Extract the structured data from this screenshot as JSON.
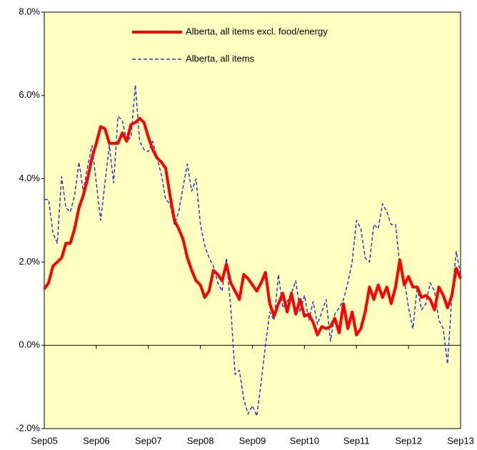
{
  "chart_data": {
    "type": "line",
    "categories": [
      "Sep05",
      null,
      null,
      null,
      null,
      null,
      null,
      null,
      null,
      null,
      null,
      null,
      "Sep06",
      null,
      null,
      null,
      null,
      null,
      null,
      null,
      null,
      null,
      null,
      null,
      "Sep07",
      null,
      null,
      null,
      null,
      null,
      null,
      null,
      null,
      null,
      null,
      null,
      "Sep08",
      null,
      null,
      null,
      null,
      null,
      null,
      null,
      null,
      null,
      null,
      null,
      "Sep09",
      null,
      null,
      null,
      null,
      null,
      null,
      null,
      null,
      null,
      null,
      null,
      "Sept10",
      null,
      null,
      null,
      null,
      null,
      null,
      null,
      null,
      null,
      null,
      null,
      "Sep11",
      null,
      null,
      null,
      null,
      null,
      null,
      null,
      null,
      null,
      null,
      null,
      "Sep12",
      null,
      null,
      null,
      null,
      null,
      null,
      null,
      null,
      null,
      null,
      null,
      "Sep13"
    ],
    "series": [
      {
        "name": "Alberta, all items excl. food/energy",
        "color": "#ff0000",
        "values": [
          1.35,
          1.5,
          1.9,
          2.0,
          2.1,
          2.45,
          2.45,
          2.8,
          3.3,
          3.6,
          4.0,
          4.5,
          4.85,
          5.25,
          5.2,
          4.85,
          4.85,
          4.85,
          5.1,
          4.9,
          5.3,
          5.35,
          5.45,
          5.35,
          5.0,
          4.7,
          4.5,
          4.4,
          4.25,
          3.6,
          3.0,
          2.8,
          2.55,
          2.1,
          1.8,
          1.55,
          1.45,
          1.15,
          1.3,
          1.8,
          1.7,
          1.55,
          1.95,
          1.5,
          1.3,
          1.1,
          1.7,
          1.6,
          1.45,
          1.3,
          1.5,
          1.75,
          1.0,
          0.7,
          1.0,
          1.25,
          0.8,
          1.25,
          0.75,
          1.1,
          0.7,
          0.75,
          0.55,
          0.25,
          0.45,
          0.4,
          0.45,
          0.65,
          0.3,
          1.0,
          0.4,
          0.8,
          0.25,
          0.4,
          0.8,
          1.4,
          1.1,
          1.45,
          1.15,
          1.4,
          1.0,
          1.4,
          2.05,
          1.45,
          1.65,
          1.4,
          1.4,
          1.15,
          1.2,
          1.1,
          0.85,
          1.4,
          1.2,
          0.9,
          1.2,
          1.85,
          1.6
        ]
      },
      {
        "name": "Alberta, all items",
        "color": "#3333cc",
        "values": [
          3.5,
          3.5,
          2.7,
          2.45,
          4.05,
          3.3,
          3.2,
          3.6,
          4.4,
          3.7,
          4.3,
          4.8,
          3.9,
          3.0,
          3.9,
          4.8,
          3.9,
          5.5,
          5.4,
          4.9,
          5.0,
          6.25,
          4.9,
          4.7,
          4.65,
          4.9,
          4.5,
          4.1,
          3.5,
          3.4,
          2.9,
          3.2,
          3.8,
          4.35,
          3.7,
          4.0,
          2.9,
          2.4,
          2.1,
          1.9,
          1.5,
          1.3,
          2.1,
          0.9,
          -0.7,
          -0.6,
          -1.3,
          -1.65,
          -1.45,
          -1.7,
          -0.9,
          0.0,
          0.8,
          0.6,
          1.7,
          0.9,
          1.05,
          1.25,
          1.55,
          0.8,
          1.2,
          0.6,
          1.05,
          0.5,
          0.8,
          1.1,
          0.1,
          0.75,
          0.9,
          1.1,
          1.5,
          2.0,
          3.0,
          2.8,
          2.1,
          2.0,
          2.9,
          2.8,
          3.4,
          3.2,
          2.9,
          2.9,
          1.9,
          1.6,
          0.9,
          0.4,
          1.4,
          0.85,
          1.0,
          1.5,
          1.3,
          0.6,
          0.4,
          -0.45,
          1.2,
          2.25,
          1.7
        ]
      }
    ],
    "ylim": [
      -2,
      8
    ],
    "yticks": [
      {
        "value": -2,
        "label": "-2.0%"
      },
      {
        "value": 0,
        "label": "0.0%"
      },
      {
        "value": 2,
        "label": "2.0%"
      },
      {
        "value": 4,
        "label": "4.0%"
      },
      {
        "value": 6,
        "label": "6.0%"
      },
      {
        "value": 8,
        "label": "8.0%"
      }
    ]
  }
}
